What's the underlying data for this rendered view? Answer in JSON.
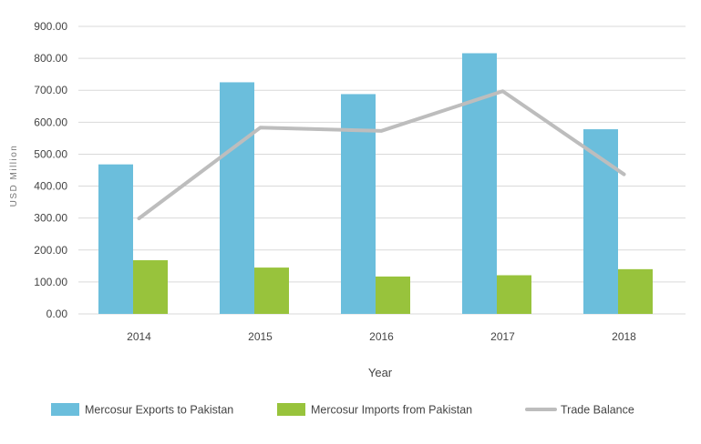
{
  "chart_data": {
    "type": "bar",
    "title": "",
    "xlabel": "Year",
    "ylabel": "USD Million",
    "ylim": [
      0,
      900
    ],
    "yticks": [
      "0.00",
      "100.00",
      "200.00",
      "300.00",
      "400.00",
      "500.00",
      "600.00",
      "700.00",
      "800.00",
      "900.00"
    ],
    "categories": [
      "2014",
      "2015",
      "2016",
      "2017",
      "2018"
    ],
    "series": [
      {
        "name": "Mercosur Exports to Pakistan",
        "kind": "bar",
        "color": "#6bbedc",
        "values": [
          468,
          725,
          688,
          816,
          578
        ]
      },
      {
        "name": "Mercosur Imports from Pakistan",
        "kind": "bar",
        "color": "#98c33c",
        "values": [
          168,
          145,
          117,
          121,
          140
        ]
      },
      {
        "name": "Trade Balance",
        "kind": "line",
        "color": "#bdbdbd",
        "values": [
          299,
          583,
          573,
          697,
          437
        ]
      }
    ],
    "grid": true,
    "legend_position": "bottom"
  }
}
